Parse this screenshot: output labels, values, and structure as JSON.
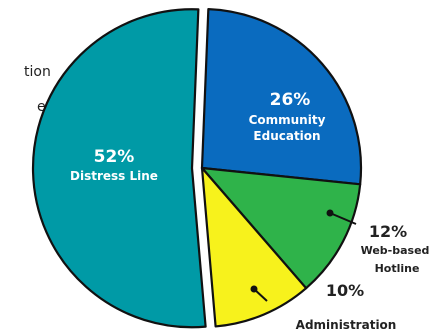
{
  "chart_data": {
    "type": "pie",
    "slices": [
      {
        "label": "Distress Line",
        "value": 52,
        "value_text": "52%",
        "color": "#009aa6"
      },
      {
        "label": "Community Education",
        "value": 26,
        "value_text": "26%",
        "color": "#0a6bbf"
      },
      {
        "label": "Web-based Hotline",
        "value": 12,
        "value_text": "12%",
        "color": "#2fb34a"
      },
      {
        "label": "Administration",
        "value": 10,
        "value_text": "10%",
        "color": "#f7f21c"
      }
    ],
    "exploded": "Distress Line"
  },
  "labels": {
    "community": {
      "pct": "26%",
      "line1": "Community",
      "line2": "Education"
    },
    "distress": {
      "pct": "52%",
      "line1": "Distress Line"
    },
    "web": {
      "pct": "12%",
      "line1": "Web-based",
      "line2": "Hotline"
    },
    "admin": {
      "pct": "10%",
      "line1": "Administration"
    }
  },
  "clipped_text": {
    "line1": "tion",
    "line2": "e"
  }
}
